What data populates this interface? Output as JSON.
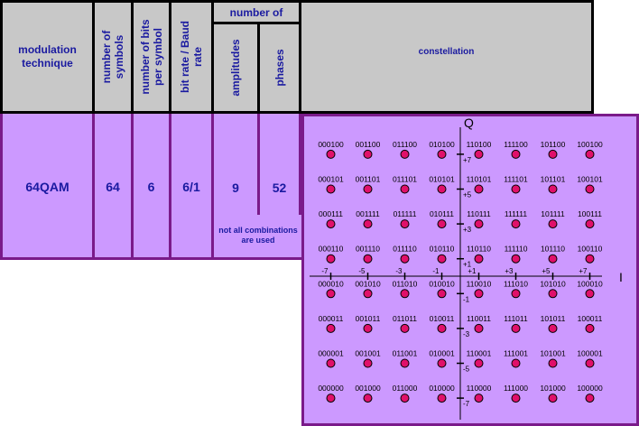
{
  "header": {
    "modulation_technique": "modulation technique",
    "number_of_symbols": "number of symbols",
    "bits_per_symbol": "number of bits per symbol",
    "bit_baud_rate": "bit rate / Baud rate",
    "number_of": "number of",
    "amplitudes": "amplitudes",
    "phases": "phases",
    "constellation": "constellation"
  },
  "row": {
    "technique": "64QAM",
    "symbols": "64",
    "bits": "6",
    "rate": "6/1",
    "amplitudes": "9",
    "phases": "52",
    "note": "not all combinations are used"
  },
  "constellation": {
    "q_label": "Q",
    "i_label": "I",
    "x_ticks": [
      {
        "value": -7,
        "label": "-7"
      },
      {
        "value": -5,
        "label": "-5"
      },
      {
        "value": -3,
        "label": "-3"
      },
      {
        "value": -1,
        "label": "-1"
      },
      {
        "value": 1,
        "label": "+1"
      },
      {
        "value": 3,
        "label": "+3"
      },
      {
        "value": 5,
        "label": "+5"
      },
      {
        "value": 7,
        "label": "+7"
      }
    ],
    "y_ticks": [
      {
        "value": 7,
        "label": "+7"
      },
      {
        "value": 5,
        "label": "+5"
      },
      {
        "value": 3,
        "label": "+3"
      },
      {
        "value": 1,
        "label": "+1"
      },
      {
        "value": -1,
        "label": "-1"
      },
      {
        "value": -3,
        "label": "-3"
      },
      {
        "value": -5,
        "label": "-5"
      },
      {
        "value": -7,
        "label": "-7"
      }
    ],
    "i_values": [
      -7,
      -5,
      -3,
      -1,
      1,
      3,
      5,
      7
    ],
    "q_values": [
      7,
      5,
      3,
      1,
      -1,
      -3,
      -5,
      -7
    ],
    "codes": [
      [
        "000100",
        "001100",
        "011100",
        "010100",
        "110100",
        "111100",
        "101100",
        "100100"
      ],
      [
        "000101",
        "001101",
        "011101",
        "010101",
        "110101",
        "111101",
        "101101",
        "100101"
      ],
      [
        "000111",
        "001111",
        "011111",
        "010111",
        "110111",
        "111111",
        "101111",
        "100111"
      ],
      [
        "000110",
        "001110",
        "011110",
        "010110",
        "110110",
        "111110",
        "101110",
        "100110"
      ],
      [
        "000010",
        "001010",
        "011010",
        "010010",
        "110010",
        "111010",
        "101010",
        "100010"
      ],
      [
        "000011",
        "001011",
        "011011",
        "010011",
        "110011",
        "111011",
        "101011",
        "100011"
      ],
      [
        "000001",
        "001001",
        "011001",
        "010001",
        "110001",
        "111001",
        "101001",
        "100001"
      ],
      [
        "000000",
        "001000",
        "011000",
        "010000",
        "110000",
        "111000",
        "101000",
        "100000"
      ]
    ],
    "dot_color": "#e0106a"
  }
}
